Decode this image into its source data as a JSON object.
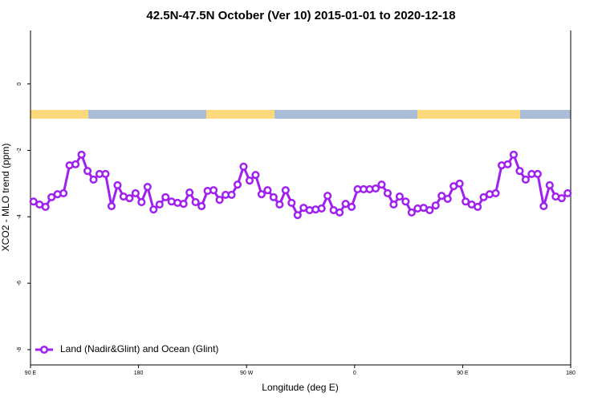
{
  "chart_data": {
    "type": "line",
    "title": "42.5N-47.5N October (Ver 10)   2015-01-01 to 2020-12-18",
    "xlabel": "Longitude (deg E)",
    "ylabel": "XCO2 - MLO trend (ppm)",
    "x": [
      92.5,
      97.5,
      102.5,
      107.5,
      112.5,
      117.5,
      122.5,
      127.5,
      132.5,
      137.5,
      142.5,
      147.5,
      152.5,
      157.5,
      162.5,
      167.5,
      172.5,
      177.5,
      182.5,
      187.5,
      192.5,
      197.5,
      202.5,
      207.5,
      212.5,
      217.5,
      222.5,
      227.5,
      232.5,
      237.5,
      242.5,
      247.5,
      252.5,
      257.5,
      262.5,
      267.5,
      272.5,
      277.5,
      282.5,
      287.5,
      292.5,
      297.5,
      302.5,
      307.5,
      312.5,
      317.5,
      322.5,
      327.5,
      332.5,
      337.5,
      342.5,
      347.5,
      352.5,
      357.5,
      362.5,
      367.5,
      372.5,
      377.5,
      382.5,
      387.5,
      392.5,
      397.5,
      402.5,
      407.5,
      412.5,
      417.5,
      422.5,
      427.5,
      432.5,
      437.5,
      442.5,
      447.5,
      452.5,
      457.5,
      462.5,
      467.5,
      472.5,
      477.5,
      482.5,
      487.5,
      492.5,
      497.5,
      502.5,
      507.5,
      512.5,
      517.5,
      522.5,
      527.5,
      532.5,
      537.5
    ],
    "series": [
      {
        "name": "Land (Nadir&Glint) and Ocean (Glint)",
        "color": "#a020f0",
        "values": [
          -3.54,
          -3.63,
          -3.7,
          -3.41,
          -3.32,
          -3.29,
          -2.45,
          -2.42,
          -2.13,
          -2.62,
          -2.88,
          -2.71,
          -2.71,
          -3.68,
          -3.05,
          -3.39,
          -3.44,
          -3.29,
          -3.56,
          -3.1,
          -3.78,
          -3.63,
          -3.41,
          -3.54,
          -3.58,
          -3.61,
          -3.27,
          -3.56,
          -3.68,
          -3.22,
          -3.2,
          -3.49,
          -3.34,
          -3.34,
          -3.03,
          -2.49,
          -2.91,
          -2.74,
          -3.32,
          -3.2,
          -3.41,
          -3.63,
          -3.2,
          -3.58,
          -3.95,
          -3.73,
          -3.8,
          -3.78,
          -3.75,
          -3.37,
          -3.8,
          -3.87,
          -3.61,
          -3.7,
          -3.17,
          -3.17,
          -3.17,
          -3.15,
          -3.03,
          -3.29,
          -3.63,
          -3.39,
          -3.54,
          -3.87,
          -3.75,
          -3.73,
          -3.8,
          -3.66,
          -3.37,
          -3.46,
          -3.08,
          -3.0,
          -3.54,
          -3.63,
          -3.7,
          -3.41,
          -3.32,
          -3.29,
          -2.45,
          -2.42,
          -2.13,
          -2.62,
          -2.88,
          -2.71,
          -2.71,
          -3.68,
          -3.05,
          -3.39,
          -3.44,
          -3.29
        ]
      }
    ],
    "xlim": [
      90,
      540
    ],
    "xticks": [
      {
        "value": 90,
        "label": "90 E"
      },
      180,
      {
        "value": 270,
        "label": "90 W"
      },
      {
        "value": 360,
        "label": "0"
      },
      {
        "value": 450,
        "label": "90 E"
      },
      {
        "value": 540,
        "label": "180"
      }
    ],
    "ylim": [
      -8.46,
      1.61
    ],
    "yticks": [
      0,
      -2,
      -4,
      -6,
      -8
    ],
    "grid": false,
    "legend": "bottom-left"
  }
}
